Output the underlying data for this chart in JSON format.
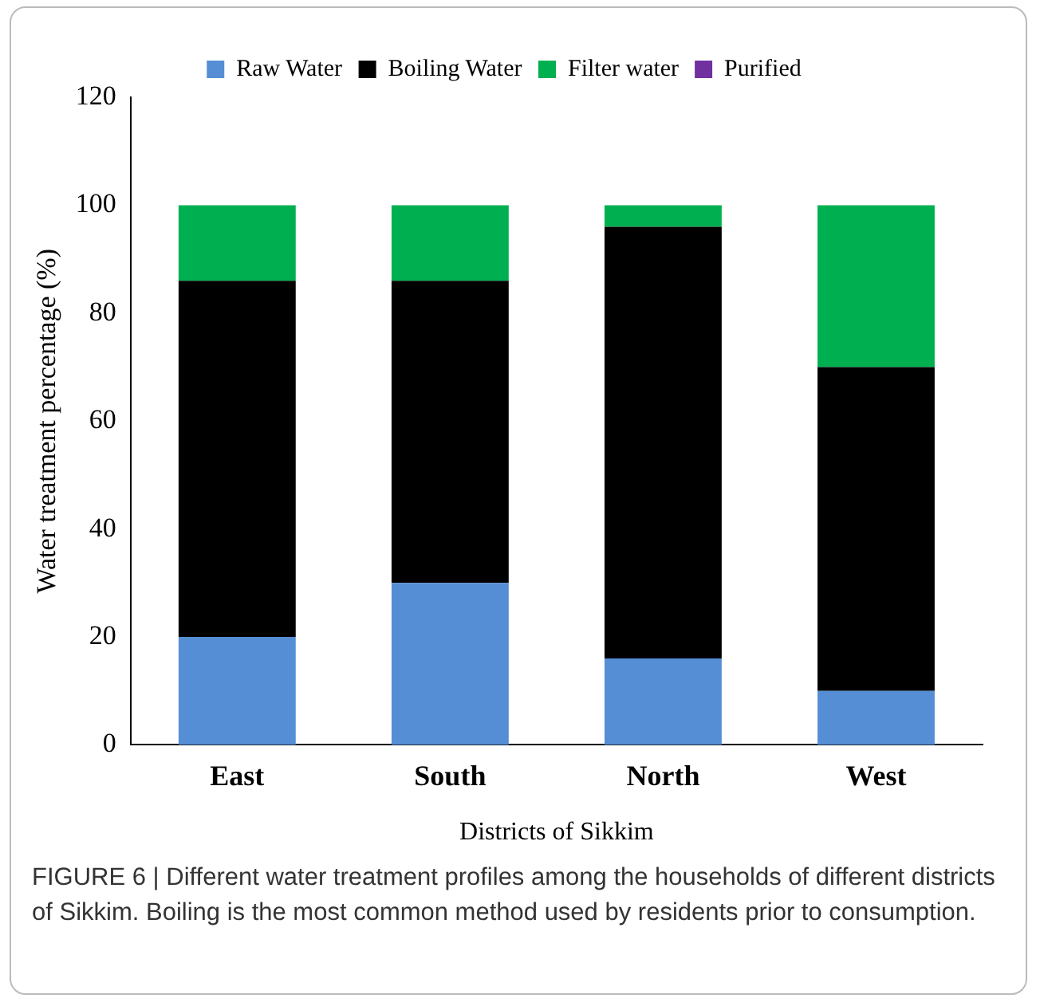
{
  "chart_data": {
    "type": "bar",
    "stacked": true,
    "categories": [
      "East",
      "South",
      "North",
      "West"
    ],
    "series": [
      {
        "name": "Raw Water",
        "color": "#558ed5",
        "values": [
          20,
          30,
          16,
          10
        ]
      },
      {
        "name": "Boiling Water",
        "color": "#000000",
        "values": [
          66,
          56,
          80,
          60
        ]
      },
      {
        "name": "Filter water",
        "color": "#00b050",
        "values": [
          14,
          14,
          4,
          30
        ]
      },
      {
        "name": "Purified",
        "color": "#7030a0",
        "values": [
          0,
          0,
          0,
          0
        ]
      }
    ],
    "xlabel": "Districts of Sikkim",
    "ylabel": "Water treatment percentage (%)",
    "ylim": [
      0,
      120
    ],
    "yticks": [
      0,
      20,
      40,
      60,
      80,
      100,
      120
    ],
    "grid": false,
    "legend": "top",
    "annotations": [
      "FIGURE 6 | Different water treatment profiles among the households of different districts of Sikkim. Boiling is the most common method used by residents prior to consumption."
    ]
  }
}
